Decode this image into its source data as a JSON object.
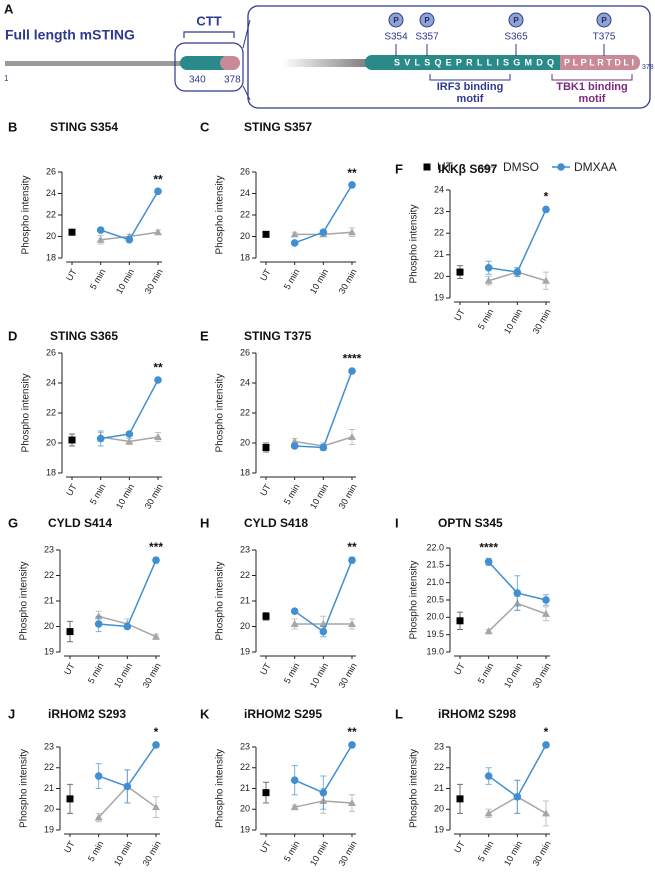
{
  "diagram": {
    "panel": "A",
    "title": "Full length mSTING",
    "start": "1",
    "ctt_label": "CTT",
    "ctt_start": "340",
    "ctt_end": "378",
    "phospho": "P",
    "sites": [
      "S354",
      "S357",
      "S365",
      "T375"
    ],
    "seq_irf3": "SVLSQEPRLLISGMDQ",
    "seq_tbk1": "PLPLRTDLI",
    "seq_end": "378",
    "irf3_motif": [
      "IRF3 binding",
      "motif"
    ],
    "tbk1_motif": [
      "TBK1 binding",
      "motif"
    ]
  },
  "chart_data": [
    {
      "type": "line",
      "panel": "B",
      "title": "STING S354",
      "y_label": "Phospho intensity",
      "categories": [
        "UT",
        "5 min",
        "10 min",
        "30 min"
      ],
      "ylim": [
        18,
        26
      ],
      "yticks": [
        18,
        20,
        22,
        24,
        26
      ],
      "series": [
        {
          "name": "UT",
          "color": "#000000",
          "marker": "square",
          "values": [
            20.4,
            null,
            null,
            null
          ],
          "errors": [
            0.15,
            null,
            null,
            null
          ]
        },
        {
          "name": "DMSO",
          "color": "#a6a6a6",
          "marker": "triangle",
          "values": [
            null,
            19.7,
            20.0,
            20.4
          ],
          "errors": [
            null,
            0.4,
            0.2,
            0.2
          ]
        },
        {
          "name": "DMXAA",
          "color": "#3f8fd2",
          "marker": "circle",
          "values": [
            null,
            20.6,
            19.7,
            24.2
          ],
          "errors": [
            null,
            0.1,
            0.2,
            0.1
          ]
        }
      ],
      "annotations": [
        {
          "text": "**",
          "category": "30 min"
        }
      ]
    },
    {
      "type": "line",
      "panel": "C",
      "title": "STING S357",
      "y_label": "Phospho intensity",
      "categories": [
        "UT",
        "5 min",
        "10 min",
        "30 min"
      ],
      "ylim": [
        18,
        26
      ],
      "yticks": [
        18,
        20,
        22,
        24,
        26
      ],
      "series": [
        {
          "name": "UT",
          "color": "#000000",
          "marker": "square",
          "values": [
            20.2,
            null,
            null,
            null
          ],
          "errors": [
            0.15,
            null,
            null,
            null
          ]
        },
        {
          "name": "DMSO",
          "color": "#a6a6a6",
          "marker": "triangle",
          "values": [
            null,
            20.2,
            20.2,
            20.4
          ],
          "errors": [
            null,
            0.2,
            0.2,
            0.4
          ]
        },
        {
          "name": "DMXAA",
          "color": "#3f8fd2",
          "marker": "circle",
          "values": [
            null,
            19.4,
            20.4,
            24.8
          ],
          "errors": [
            null,
            0.1,
            0.2,
            0.1
          ]
        }
      ],
      "annotations": [
        {
          "text": "**",
          "category": "30 min"
        }
      ]
    },
    {
      "type": "line",
      "panel": "F",
      "title": "IKKβ S697",
      "y_label": "Phospho intensity",
      "categories": [
        "UT",
        "5 min",
        "10 min",
        "30 min"
      ],
      "ylim": [
        19,
        24
      ],
      "yticks": [
        19,
        20,
        21,
        22,
        23,
        24
      ],
      "series": [
        {
          "name": "UT",
          "color": "#000000",
          "marker": "square",
          "values": [
            20.2,
            null,
            null,
            null
          ],
          "errors": [
            0.3,
            null,
            null,
            null
          ]
        },
        {
          "name": "DMSO",
          "color": "#a6a6a6",
          "marker": "triangle",
          "values": [
            null,
            19.8,
            20.2,
            19.8
          ],
          "errors": [
            null,
            0.2,
            0.2,
            0.4
          ]
        },
        {
          "name": "DMXAA",
          "color": "#3f8fd2",
          "marker": "circle",
          "values": [
            null,
            20.4,
            20.2,
            23.1
          ],
          "errors": [
            null,
            0.3,
            0.2,
            0.1
          ]
        }
      ],
      "annotations": [
        {
          "text": "*",
          "category": "30 min"
        }
      ]
    },
    {
      "type": "line",
      "panel": "D",
      "title": "STING S365",
      "y_label": "Phospho intensity",
      "categories": [
        "UT",
        "5 min",
        "10 min",
        "30 min"
      ],
      "ylim": [
        18,
        26
      ],
      "yticks": [
        18,
        20,
        22,
        24,
        26
      ],
      "series": [
        {
          "name": "UT",
          "color": "#000000",
          "marker": "square",
          "values": [
            20.2,
            null,
            null,
            null
          ],
          "errors": [
            0.4,
            null,
            null,
            null
          ]
        },
        {
          "name": "DMSO",
          "color": "#a6a6a6",
          "marker": "triangle",
          "values": [
            null,
            20.4,
            20.1,
            20.4
          ],
          "errors": [
            null,
            0.3,
            0.2,
            0.3
          ]
        },
        {
          "name": "DMXAA",
          "color": "#3f8fd2",
          "marker": "circle",
          "values": [
            null,
            20.3,
            20.6,
            24.2
          ],
          "errors": [
            null,
            0.5,
            0.1,
            0.1
          ]
        }
      ],
      "annotations": [
        {
          "text": "**",
          "category": "30 min"
        }
      ]
    },
    {
      "type": "line",
      "panel": "E",
      "title": "STING T375",
      "y_label": "Phospho intensity",
      "categories": [
        "UT",
        "5 min",
        "10 min",
        "30 min"
      ],
      "ylim": [
        18,
        26
      ],
      "yticks": [
        18,
        20,
        22,
        24,
        26
      ],
      "series": [
        {
          "name": "UT",
          "color": "#000000",
          "marker": "square",
          "values": [
            19.7,
            null,
            null,
            null
          ],
          "errors": [
            0.3,
            null,
            null,
            null
          ]
        },
        {
          "name": "DMSO",
          "color": "#a6a6a6",
          "marker": "triangle",
          "values": [
            null,
            20.1,
            19.8,
            20.4
          ],
          "errors": [
            null,
            0.2,
            0.2,
            0.5
          ]
        },
        {
          "name": "DMXAA",
          "color": "#3f8fd2",
          "marker": "circle",
          "values": [
            null,
            19.8,
            19.7,
            24.8
          ],
          "errors": [
            null,
            0.1,
            0.2,
            0.1
          ]
        }
      ],
      "annotations": [
        {
          "text": "****",
          "category": "30 min"
        }
      ]
    },
    {
      "type": "line",
      "panel": "G",
      "title": "CYLD S414",
      "y_label": "Phospho intensity",
      "categories": [
        "UT",
        "5 min",
        "10 min",
        "30 min"
      ],
      "ylim": [
        19,
        23
      ],
      "yticks": [
        19,
        20,
        21,
        22,
        23
      ],
      "series": [
        {
          "name": "UT",
          "color": "#000000",
          "marker": "square",
          "values": [
            19.8,
            null,
            null,
            null
          ],
          "errors": [
            0.4,
            null,
            null,
            null
          ]
        },
        {
          "name": "DMSO",
          "color": "#a6a6a6",
          "marker": "triangle",
          "values": [
            null,
            20.4,
            20.1,
            19.6
          ],
          "errors": [
            null,
            0.2,
            0.2,
            0.1
          ]
        },
        {
          "name": "DMXAA",
          "color": "#3f8fd2",
          "marker": "circle",
          "values": [
            null,
            20.1,
            20.0,
            22.6
          ],
          "errors": [
            null,
            0.3,
            0.1,
            0.1
          ]
        }
      ],
      "annotations": [
        {
          "text": "***",
          "category": "30 min"
        }
      ]
    },
    {
      "type": "line",
      "panel": "H",
      "title": "CYLD S418",
      "y_label": "Phospho intensity",
      "categories": [
        "UT",
        "5 min",
        "10 min",
        "30 min"
      ],
      "ylim": [
        19,
        23
      ],
      "yticks": [
        19,
        20,
        21,
        22,
        23
      ],
      "series": [
        {
          "name": "UT",
          "color": "#000000",
          "marker": "square",
          "values": [
            20.4,
            null,
            null,
            null
          ],
          "errors": [
            0.15,
            null,
            null,
            null
          ]
        },
        {
          "name": "DMSO",
          "color": "#a6a6a6",
          "marker": "triangle",
          "values": [
            null,
            20.1,
            20.1,
            20.1
          ],
          "errors": [
            null,
            0.2,
            0.3,
            0.2
          ]
        },
        {
          "name": "DMXAA",
          "color": "#3f8fd2",
          "marker": "circle",
          "values": [
            null,
            20.6,
            19.8,
            22.6
          ],
          "errors": [
            null,
            0.05,
            0.2,
            0.1
          ]
        }
      ],
      "annotations": [
        {
          "text": "**",
          "category": "30 min"
        }
      ]
    },
    {
      "type": "line",
      "panel": "I",
      "title": "OPTN S345",
      "y_label": "Phospho intensity",
      "categories": [
        "UT",
        "5 min",
        "10 min",
        "30 min"
      ],
      "ylim": [
        19,
        22
      ],
      "yticks": [
        {
          "value": 19,
          "label": "19.0"
        },
        19.5,
        {
          "value": 20,
          "label": "20.0"
        },
        20.5,
        {
          "value": 21,
          "label": "21.0"
        },
        21.5,
        {
          "value": 22,
          "label": "22.0"
        }
      ],
      "series": [
        {
          "name": "UT",
          "color": "#000000",
          "marker": "square",
          "values": [
            19.9,
            null,
            null,
            null
          ],
          "errors": [
            0.25,
            null,
            null,
            null
          ]
        },
        {
          "name": "DMSO",
          "color": "#a6a6a6",
          "marker": "triangle",
          "values": [
            null,
            19.6,
            20.4,
            20.1
          ],
          "errors": [
            null,
            0.05,
            0.2,
            0.2
          ]
        },
        {
          "name": "DMXAA",
          "color": "#3f8fd2",
          "marker": "circle",
          "values": [
            null,
            21.6,
            20.7,
            20.5
          ],
          "errors": [
            null,
            0.1,
            0.5,
            0.15
          ]
        }
      ],
      "annotations": [
        {
          "text": "****",
          "category": "5 min"
        }
      ]
    },
    {
      "type": "line",
      "panel": "J",
      "title": "iRHOM2 S293",
      "y_label": "Phospho intensity",
      "categories": [
        "UT",
        "5 min",
        "10 min",
        "30 min"
      ],
      "ylim": [
        19,
        23
      ],
      "yticks": [
        19,
        20,
        21,
        22,
        23
      ],
      "series": [
        {
          "name": "UT",
          "color": "#000000",
          "marker": "square",
          "values": [
            20.5,
            null,
            null,
            null
          ],
          "errors": [
            0.7,
            null,
            null,
            null
          ]
        },
        {
          "name": "DMSO",
          "color": "#a6a6a6",
          "marker": "triangle",
          "values": [
            null,
            19.6,
            21.1,
            20.1
          ],
          "errors": [
            null,
            0.2,
            0.8,
            0.5
          ]
        },
        {
          "name": "DMXAA",
          "color": "#3f8fd2",
          "marker": "circle",
          "values": [
            null,
            21.6,
            21.1,
            23.1
          ],
          "errors": [
            null,
            0.6,
            0.8,
            0.1
          ]
        }
      ],
      "annotations": [
        {
          "text": "*",
          "category": "30 min"
        }
      ]
    },
    {
      "type": "line",
      "panel": "K",
      "title": "iRHOM2 S295",
      "y_label": "Phospho intensity",
      "categories": [
        "UT",
        "5 min",
        "10 min",
        "30 min"
      ],
      "ylim": [
        19,
        23
      ],
      "yticks": [
        19,
        20,
        21,
        22,
        23
      ],
      "series": [
        {
          "name": "UT",
          "color": "#000000",
          "marker": "square",
          "values": [
            20.8,
            null,
            null,
            null
          ],
          "errors": [
            0.5,
            null,
            null,
            null
          ]
        },
        {
          "name": "DMSO",
          "color": "#a6a6a6",
          "marker": "triangle",
          "values": [
            null,
            20.1,
            20.4,
            20.3
          ],
          "errors": [
            null,
            0.1,
            0.6,
            0.4
          ]
        },
        {
          "name": "DMXAA",
          "color": "#3f8fd2",
          "marker": "circle",
          "values": [
            null,
            21.4,
            20.8,
            23.1
          ],
          "errors": [
            null,
            0.7,
            0.8,
            0.1
          ]
        }
      ],
      "annotations": [
        {
          "text": "**",
          "category": "30 min"
        }
      ]
    },
    {
      "type": "line",
      "panel": "L",
      "title": "iRHOM2 S298",
      "y_label": "Phospho intensity",
      "categories": [
        "UT",
        "5 min",
        "10 min",
        "30 min"
      ],
      "ylim": [
        19,
        23
      ],
      "yticks": [
        19,
        20,
        21,
        22,
        23
      ],
      "series": [
        {
          "name": "UT",
          "color": "#000000",
          "marker": "square",
          "values": [
            20.5,
            null,
            null,
            null
          ],
          "errors": [
            0.7,
            null,
            null,
            null
          ]
        },
        {
          "name": "DMSO",
          "color": "#a6a6a6",
          "marker": "triangle",
          "values": [
            null,
            19.8,
            20.6,
            19.8
          ],
          "errors": [
            null,
            0.2,
            0.8,
            0.6
          ]
        },
        {
          "name": "DMXAA",
          "color": "#3f8fd2",
          "marker": "circle",
          "values": [
            null,
            21.6,
            20.6,
            23.1
          ],
          "errors": [
            null,
            0.4,
            0.8,
            0.1
          ]
        }
      ],
      "annotations": [
        {
          "text": "*",
          "category": "30 min"
        }
      ]
    }
  ]
}
